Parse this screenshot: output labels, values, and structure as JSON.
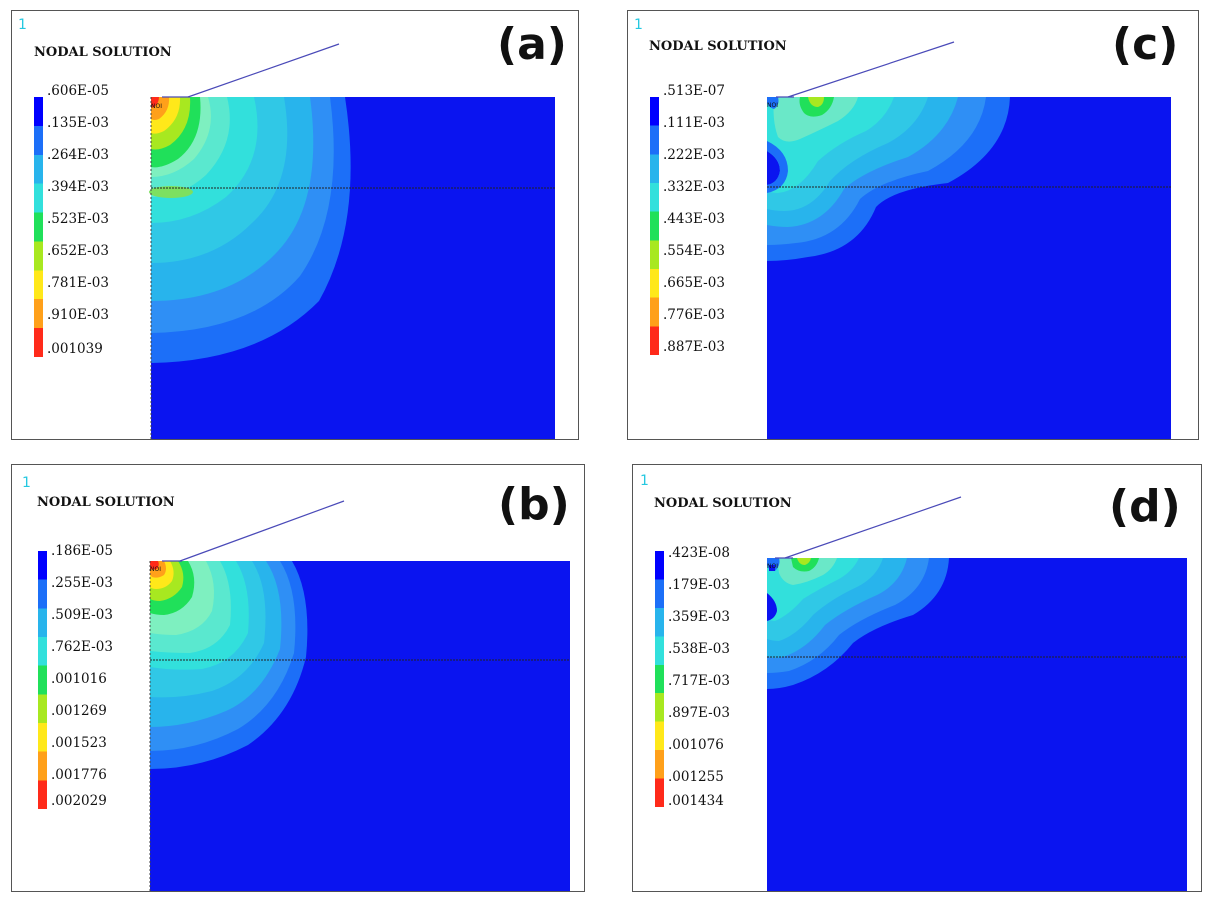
{
  "panels": [
    {
      "id": "a",
      "number": "1",
      "title": "NODAL SOLUTION",
      "letter": "(a)",
      "legend_values": [
        ".606E-05",
        ".135E-03",
        ".264E-03",
        ".394E-03",
        ".523E-03",
        ".652E-03",
        ".781E-03",
        ".910E-03",
        ".001039"
      ],
      "node_label": "NOI"
    },
    {
      "id": "b",
      "number": "1",
      "title": "NODAL SOLUTION",
      "letter": "(b)",
      "legend_values": [
        ".186E-05",
        ".255E-03",
        ".509E-03",
        ".762E-03",
        ".001016",
        ".001269",
        ".001523",
        ".001776",
        ".002029"
      ],
      "node_label": "NOI"
    },
    {
      "id": "c",
      "number": "1",
      "title": "NODAL SOLUTION",
      "letter": "(c)",
      "legend_values": [
        ".513E-07",
        ".111E-03",
        ".222E-03",
        ".332E-03",
        ".443E-03",
        ".554E-03",
        ".665E-03",
        ".776E-03",
        ".887E-03"
      ],
      "node_label": "NOI"
    },
    {
      "id": "d",
      "number": "1",
      "title": "NODAL SOLUTION",
      "letter": "(d)",
      "legend_values": [
        ".423E-08",
        ".179E-03",
        ".359E-03",
        ".538E-03",
        ".717E-03",
        ".897E-03",
        ".001076",
        ".001255",
        ".001434"
      ],
      "node_label": "NOI"
    }
  ],
  "colors": {
    "contour_scale": [
      "#0000ff",
      "#1c6ff8",
      "#28b4ec",
      "#32e0dc",
      "#20e05a",
      "#a8e820",
      "#ffe81a",
      "#ffa01a",
      "#ff2a1a"
    ],
    "background_field": "#0a14f0",
    "tool_line": "#4a4ab8",
    "layer_line": "#222222",
    "panel_number": "#25c8e0"
  }
}
